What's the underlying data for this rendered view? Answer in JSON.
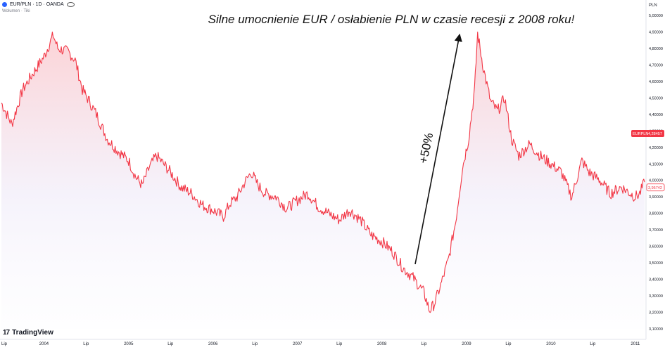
{
  "header": {
    "symbol_line": "EUR/PLN · 1D · OANDA",
    "volume_label": "Wolumen · Tiki"
  },
  "branding": {
    "logo_text": "TradingView"
  },
  "annotation": {
    "headline": "Silne umocnienie EUR / osłabienie PLN w czasie recesji z 2008 roku!",
    "arrow_label": "+50%"
  },
  "chart_data": {
    "type": "line",
    "title": "Silne umocnienie EUR / osłabienie PLN w czasie recesji z 2008 roku!",
    "currency_label": "PLN",
    "x_ticks": [
      "Lip",
      "2004",
      "Lip",
      "2005",
      "Lip",
      "2006",
      "Lip",
      "2007",
      "Lip",
      "2008",
      "Lip",
      "2009",
      "Lip",
      "2010",
      "Lip",
      "2011"
    ],
    "y_ticks": [
      "3,10000",
      "3,20000",
      "3,30000",
      "3,40000",
      "3,50000",
      "3,60000",
      "3,70000",
      "3,80000",
      "3,90000",
      "4,00000",
      "4,10000",
      "4,20000",
      "4,30000",
      "4,40000",
      "4,50000",
      "4,60000",
      "4,70000",
      "4,80000",
      "4,90000",
      "5,00000"
    ],
    "ylim": [
      3.1,
      5.0
    ],
    "series": [
      {
        "name": "EURPLN",
        "color": "#f23645",
        "points": [
          [
            "2003-07-01",
            4.47
          ],
          [
            "2003-08-15",
            4.34
          ],
          [
            "2003-10-01",
            4.55
          ],
          [
            "2003-11-15",
            4.65
          ],
          [
            "2004-01-01",
            4.75
          ],
          [
            "2004-02-10",
            4.88
          ],
          [
            "2004-03-01",
            4.8
          ],
          [
            "2004-04-15",
            4.78
          ],
          [
            "2004-05-15",
            4.73
          ],
          [
            "2004-06-15",
            4.55
          ],
          [
            "2004-07-15",
            4.48
          ],
          [
            "2004-08-15",
            4.4
          ],
          [
            "2004-10-01",
            4.25
          ],
          [
            "2004-11-15",
            4.18
          ],
          [
            "2005-01-01",
            4.12
          ],
          [
            "2005-02-01",
            4.02
          ],
          [
            "2005-03-01",
            3.97
          ],
          [
            "2005-04-01",
            4.08
          ],
          [
            "2005-05-01",
            4.15
          ],
          [
            "2005-06-01",
            4.1
          ],
          [
            "2005-07-01",
            4.05
          ],
          [
            "2005-08-15",
            3.96
          ],
          [
            "2005-10-01",
            3.92
          ],
          [
            "2005-11-15",
            3.85
          ],
          [
            "2006-01-01",
            3.82
          ],
          [
            "2006-02-15",
            3.78
          ],
          [
            "2006-03-15",
            3.86
          ],
          [
            "2006-04-15",
            3.9
          ],
          [
            "2006-05-15",
            3.98
          ],
          [
            "2006-06-15",
            4.05
          ],
          [
            "2006-07-15",
            3.97
          ],
          [
            "2006-08-15",
            3.92
          ],
          [
            "2006-10-01",
            3.9
          ],
          [
            "2006-11-15",
            3.83
          ],
          [
            "2007-01-01",
            3.88
          ],
          [
            "2007-02-15",
            3.92
          ],
          [
            "2007-04-01",
            3.84
          ],
          [
            "2007-05-15",
            3.8
          ],
          [
            "2007-07-01",
            3.76
          ],
          [
            "2007-08-15",
            3.82
          ],
          [
            "2007-10-01",
            3.76
          ],
          [
            "2007-11-15",
            3.67
          ],
          [
            "2008-01-01",
            3.63
          ],
          [
            "2008-02-15",
            3.57
          ],
          [
            "2008-04-01",
            3.47
          ],
          [
            "2008-05-15",
            3.41
          ],
          [
            "2008-07-01",
            3.32
          ],
          [
            "2008-07-25",
            3.21
          ],
          [
            "2008-08-15",
            3.25
          ],
          [
            "2008-09-15",
            3.38
          ],
          [
            "2008-10-15",
            3.52
          ],
          [
            "2008-11-15",
            3.75
          ],
          [
            "2008-12-15",
            4.08
          ],
          [
            "2009-01-10",
            4.25
          ],
          [
            "2009-02-05",
            4.55
          ],
          [
            "2009-02-18",
            4.89
          ],
          [
            "2009-03-15",
            4.68
          ],
          [
            "2009-04-15",
            4.48
          ],
          [
            "2009-05-15",
            4.42
          ],
          [
            "2009-06-15",
            4.5
          ],
          [
            "2009-07-15",
            4.25
          ],
          [
            "2009-08-15",
            4.15
          ],
          [
            "2009-10-01",
            4.22
          ],
          [
            "2009-11-15",
            4.15
          ],
          [
            "2010-01-01",
            4.1
          ],
          [
            "2010-02-15",
            4.05
          ],
          [
            "2010-04-01",
            3.9
          ],
          [
            "2010-05-15",
            4.12
          ],
          [
            "2010-06-15",
            4.05
          ],
          [
            "2010-08-01",
            4.0
          ],
          [
            "2010-09-15",
            3.92
          ],
          [
            "2010-11-01",
            3.96
          ],
          [
            "2011-01-01",
            3.9
          ],
          [
            "2011-01-20",
            3.92
          ],
          [
            "2011-02-10",
            3.99
          ]
        ]
      }
    ],
    "last_price_label": {
      "name": "EURPLN",
      "value": "4,28457"
    },
    "current_price_label": "3,95742"
  }
}
